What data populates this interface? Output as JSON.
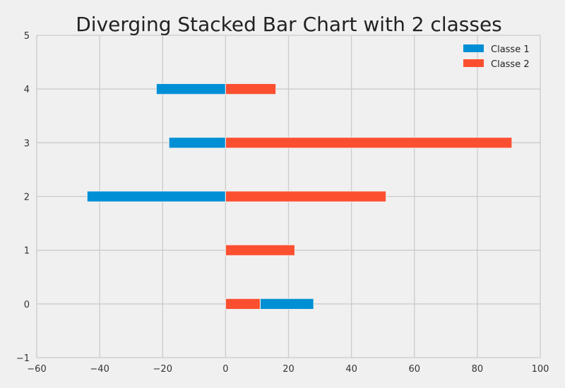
{
  "chart_data": {
    "type": "bar",
    "orientation": "horizontal",
    "title": "Diverging Stacked Bar Chart with 2 classes",
    "xlabel": "",
    "ylabel": "",
    "xlim": [
      -60,
      100
    ],
    "ylim": [
      -1,
      5
    ],
    "x_ticks": [
      -60,
      -40,
      -20,
      0,
      20,
      40,
      60,
      80,
      100
    ],
    "y_ticks": [
      -1,
      0,
      1,
      2,
      3,
      4,
      5
    ],
    "x_tick_labels": [
      "−60",
      "−40",
      "−20",
      "0",
      "20",
      "40",
      "60",
      "80",
      "100"
    ],
    "y_tick_labels": [
      "−1",
      "0",
      "1",
      "2",
      "3",
      "4",
      "5"
    ],
    "grid": true,
    "legend_position": "top-right",
    "categories": [
      0,
      1,
      2,
      3,
      4
    ],
    "series": [
      {
        "name": "Classe 1",
        "color": "#008fd5",
        "bars": [
          {
            "y": 0,
            "start": 11,
            "end": 28
          },
          {
            "y": 1,
            "start": 0,
            "end": 0
          },
          {
            "y": 2,
            "start": -44,
            "end": 0
          },
          {
            "y": 3,
            "start": -18,
            "end": 0
          },
          {
            "y": 4,
            "start": -22,
            "end": 0
          }
        ]
      },
      {
        "name": "Classe 2",
        "color": "#fc4f30",
        "bars": [
          {
            "y": 0,
            "start": 0,
            "end": 11
          },
          {
            "y": 1,
            "start": 0,
            "end": 22
          },
          {
            "y": 2,
            "start": 0,
            "end": 51
          },
          {
            "y": 3,
            "start": 0,
            "end": 91
          },
          {
            "y": 4,
            "start": 0,
            "end": 16
          }
        ]
      }
    ]
  }
}
